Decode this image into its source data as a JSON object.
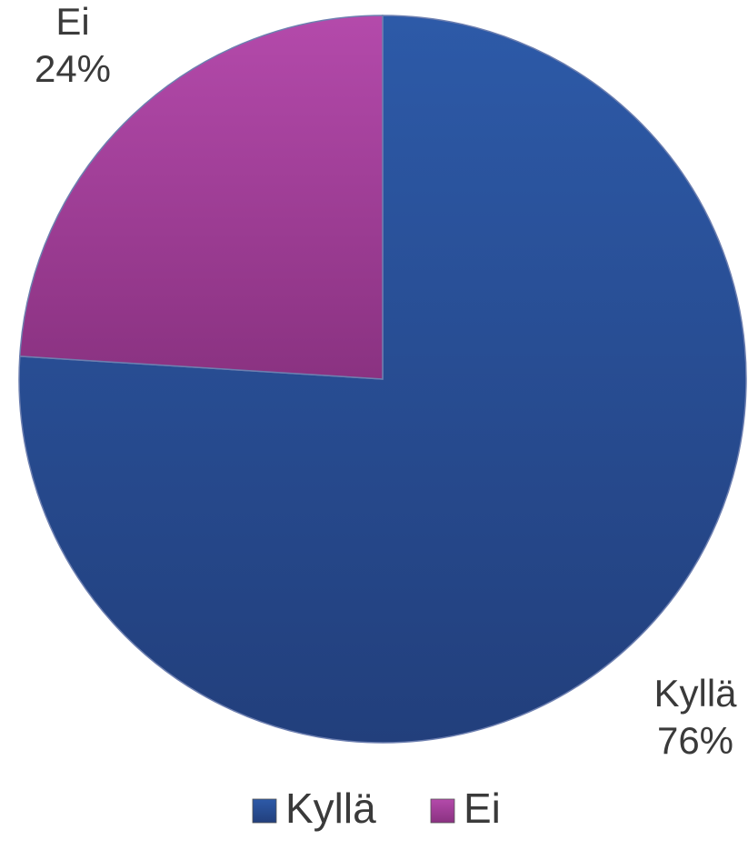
{
  "chart_data": {
    "type": "pie",
    "title": "",
    "slices": [
      {
        "label": "Kyllä",
        "value": 76,
        "value_label": "76%",
        "color": "#2a4f97"
      },
      {
        "label": "Ei",
        "value": 24,
        "value_label": "24%",
        "color": "#a03f97"
      }
    ],
    "legend": {
      "placement": "bottom",
      "items": [
        {
          "label": "Kyllä",
          "color": "#2a4f97"
        },
        {
          "label": "Ei",
          "color": "#a03f97"
        }
      ]
    }
  }
}
